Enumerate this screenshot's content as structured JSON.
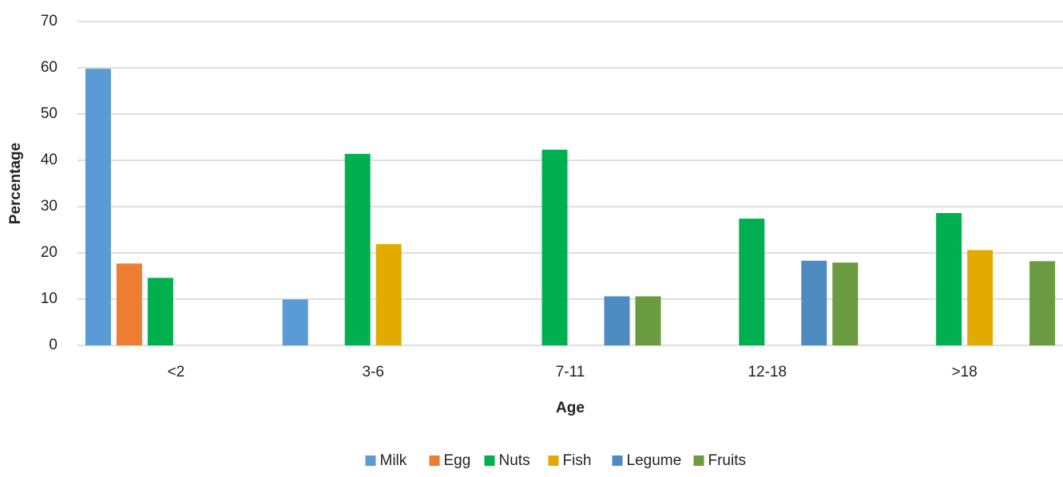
{
  "chart_data": {
    "type": "bar",
    "x_label": "Age",
    "y_label": "Percentage",
    "categories": [
      "<2",
      "3-6",
      "7-11",
      "12-18",
      ">18"
    ],
    "series": [
      {
        "name": "Milk",
        "color": "#5b9bd5",
        "values": [
          59.8,
          9.9,
          null,
          null,
          null
        ]
      },
      {
        "name": "Egg",
        "color": "#ed7d31",
        "values": [
          17.7,
          null,
          null,
          null,
          null
        ]
      },
      {
        "name": "Nuts",
        "color": "#00b050",
        "values": [
          14.6,
          41.4,
          42.3,
          27.4,
          28.6
        ]
      },
      {
        "name": "Fish",
        "color": "#e3ab00",
        "values": [
          null,
          21.9,
          null,
          null,
          20.6
        ]
      },
      {
        "name": "Legume",
        "color": "#4e8bc0",
        "values": [
          null,
          null,
          10.6,
          18.3,
          null
        ]
      },
      {
        "name": "Fruits",
        "color": "#6a9b40",
        "values": [
          null,
          null,
          10.6,
          17.9,
          18.2
        ]
      }
    ],
    "ylim": [
      0,
      70
    ],
    "yticks": [
      0,
      10,
      20,
      30,
      40,
      50,
      60,
      70
    ],
    "grid": true,
    "legend": "bottom"
  }
}
